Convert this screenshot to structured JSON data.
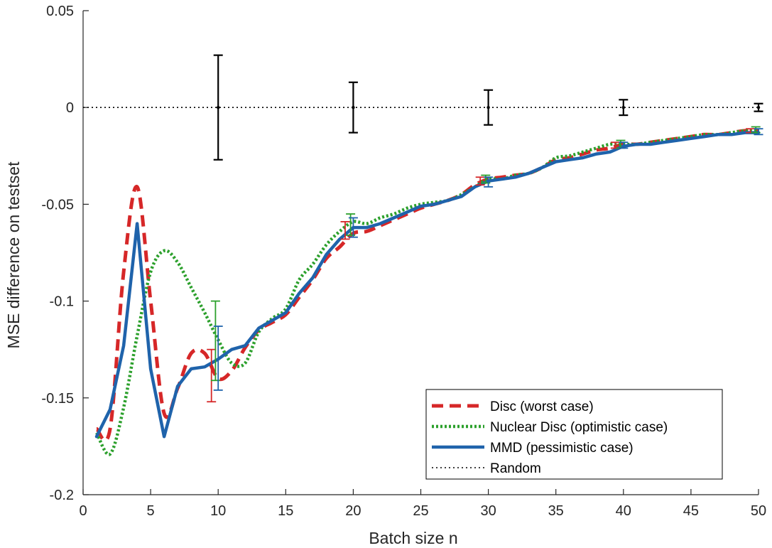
{
  "chart_data": {
    "type": "line",
    "title": "",
    "xlabel": "Batch size n",
    "ylabel": "MSE difference on testset",
    "xlim": [
      0,
      50
    ],
    "ylim": [
      -0.2,
      0.05
    ],
    "xticks": [
      0,
      5,
      10,
      15,
      20,
      25,
      30,
      35,
      40,
      45,
      50
    ],
    "yticks": [
      -0.2,
      -0.15,
      -0.1,
      -0.05,
      0,
      0.05
    ],
    "ytick_labels": [
      "-0.2",
      "-0.15",
      "-0.1",
      "-0.05",
      "0",
      "0.05"
    ],
    "grid": false,
    "legend_position": "bottom-right",
    "series": [
      {
        "name": "Disc (worst case)",
        "color": "#d62728",
        "style": "dashed",
        "x": [
          1,
          2,
          3,
          4,
          5,
          6,
          7,
          8,
          9,
          10,
          11,
          12,
          13,
          14,
          15,
          16,
          17,
          18,
          19,
          20,
          21,
          22,
          23,
          24,
          25,
          26,
          27,
          28,
          29,
          30,
          31,
          32,
          33,
          34,
          35,
          36,
          37,
          38,
          39,
          40,
          41,
          42,
          43,
          44,
          45,
          46,
          47,
          48,
          49,
          50
        ],
        "y": [
          -0.166,
          -0.166,
          -0.085,
          -0.041,
          -0.1,
          -0.158,
          -0.145,
          -0.127,
          -0.127,
          -0.14,
          -0.136,
          -0.124,
          -0.115,
          -0.111,
          -0.107,
          -0.098,
          -0.089,
          -0.078,
          -0.072,
          -0.065,
          -0.064,
          -0.061,
          -0.058,
          -0.055,
          -0.052,
          -0.05,
          -0.048,
          -0.045,
          -0.04,
          -0.037,
          -0.036,
          -0.035,
          -0.034,
          -0.031,
          -0.027,
          -0.026,
          -0.024,
          -0.022,
          -0.021,
          -0.019,
          -0.019,
          -0.018,
          -0.017,
          -0.016,
          -0.015,
          -0.014,
          -0.014,
          -0.013,
          -0.012,
          -0.012
        ],
        "error_bars": [
          {
            "x": 9.5,
            "low": -0.152,
            "high": -0.125
          },
          {
            "x": 19.4,
            "low": -0.068,
            "high": -0.059
          },
          {
            "x": 29.4,
            "low": -0.04,
            "high": -0.036
          },
          {
            "x": 39.4,
            "low": -0.021,
            "high": -0.018
          },
          {
            "x": 49.4,
            "low": -0.013,
            "high": -0.011
          }
        ]
      },
      {
        "name": "Nuclear Disc (optimistic case)",
        "color": "#2ca02c",
        "style": "dotted",
        "x": [
          1,
          2,
          3,
          4,
          5,
          6,
          7,
          8,
          9,
          10,
          11,
          12,
          13,
          14,
          15,
          16,
          17,
          18,
          19,
          20,
          21,
          22,
          23,
          24,
          25,
          26,
          27,
          28,
          29,
          30,
          31,
          32,
          33,
          34,
          35,
          36,
          37,
          38,
          39,
          40,
          41,
          42,
          43,
          44,
          45,
          46,
          47,
          48,
          49,
          50
        ],
        "y": [
          -0.168,
          -0.179,
          -0.155,
          -0.118,
          -0.085,
          -0.074,
          -0.08,
          -0.093,
          -0.106,
          -0.12,
          -0.132,
          -0.132,
          -0.116,
          -0.109,
          -0.104,
          -0.089,
          -0.081,
          -0.071,
          -0.064,
          -0.059,
          -0.06,
          -0.057,
          -0.055,
          -0.052,
          -0.05,
          -0.049,
          -0.048,
          -0.045,
          -0.041,
          -0.037,
          -0.037,
          -0.035,
          -0.034,
          -0.031,
          -0.026,
          -0.025,
          -0.023,
          -0.021,
          -0.019,
          -0.019,
          -0.019,
          -0.018,
          -0.017,
          -0.016,
          -0.015,
          -0.014,
          -0.014,
          -0.013,
          -0.012,
          -0.012
        ],
        "error_bars": [
          {
            "x": 9.8,
            "low": -0.141,
            "high": -0.1
          },
          {
            "x": 19.8,
            "low": -0.066,
            "high": -0.055
          },
          {
            "x": 29.8,
            "low": -0.039,
            "high": -0.035
          },
          {
            "x": 39.8,
            "low": -0.021,
            "high": -0.017
          },
          {
            "x": 49.8,
            "low": -0.013,
            "high": -0.01
          }
        ]
      },
      {
        "name": "MMD (pessimistic case)",
        "color": "#1f63ab",
        "style": "solid",
        "x": [
          1,
          2,
          3,
          4,
          5,
          6,
          7,
          8,
          9,
          10,
          11,
          12,
          13,
          14,
          15,
          16,
          17,
          18,
          19,
          20,
          21,
          22,
          23,
          24,
          25,
          26,
          27,
          28,
          29,
          30,
          31,
          32,
          33,
          34,
          35,
          36,
          37,
          38,
          39,
          40,
          41,
          42,
          43,
          44,
          45,
          46,
          47,
          48,
          49,
          50
        ],
        "y": [
          -0.17,
          -0.156,
          -0.123,
          -0.06,
          -0.135,
          -0.17,
          -0.144,
          -0.135,
          -0.134,
          -0.13,
          -0.125,
          -0.123,
          -0.114,
          -0.11,
          -0.106,
          -0.096,
          -0.088,
          -0.076,
          -0.068,
          -0.062,
          -0.062,
          -0.06,
          -0.057,
          -0.054,
          -0.051,
          -0.05,
          -0.048,
          -0.046,
          -0.041,
          -0.038,
          -0.037,
          -0.036,
          -0.034,
          -0.031,
          -0.028,
          -0.027,
          -0.026,
          -0.024,
          -0.023,
          -0.02,
          -0.019,
          -0.019,
          -0.018,
          -0.017,
          -0.016,
          -0.015,
          -0.014,
          -0.014,
          -0.013,
          -0.013
        ],
        "error_bars": [
          {
            "x": 10,
            "low": -0.146,
            "high": -0.113
          },
          {
            "x": 20,
            "low": -0.067,
            "high": -0.057
          },
          {
            "x": 30,
            "low": -0.041,
            "high": -0.036
          },
          {
            "x": 40,
            "low": -0.021,
            "high": -0.018
          },
          {
            "x": 50,
            "low": -0.014,
            "high": -0.011
          }
        ]
      },
      {
        "name": "Random",
        "color": "#000000",
        "style": "dotted-thin",
        "x": [
          0,
          50
        ],
        "y": [
          0,
          0
        ],
        "error_bars": [
          {
            "x": 10,
            "low": -0.027,
            "high": 0.027
          },
          {
            "x": 20,
            "low": -0.013,
            "high": 0.013
          },
          {
            "x": 30,
            "low": -0.009,
            "high": 0.009
          },
          {
            "x": 40,
            "low": -0.004,
            "high": 0.004
          },
          {
            "x": 50,
            "low": -0.002,
            "high": 0.002
          }
        ]
      }
    ]
  }
}
